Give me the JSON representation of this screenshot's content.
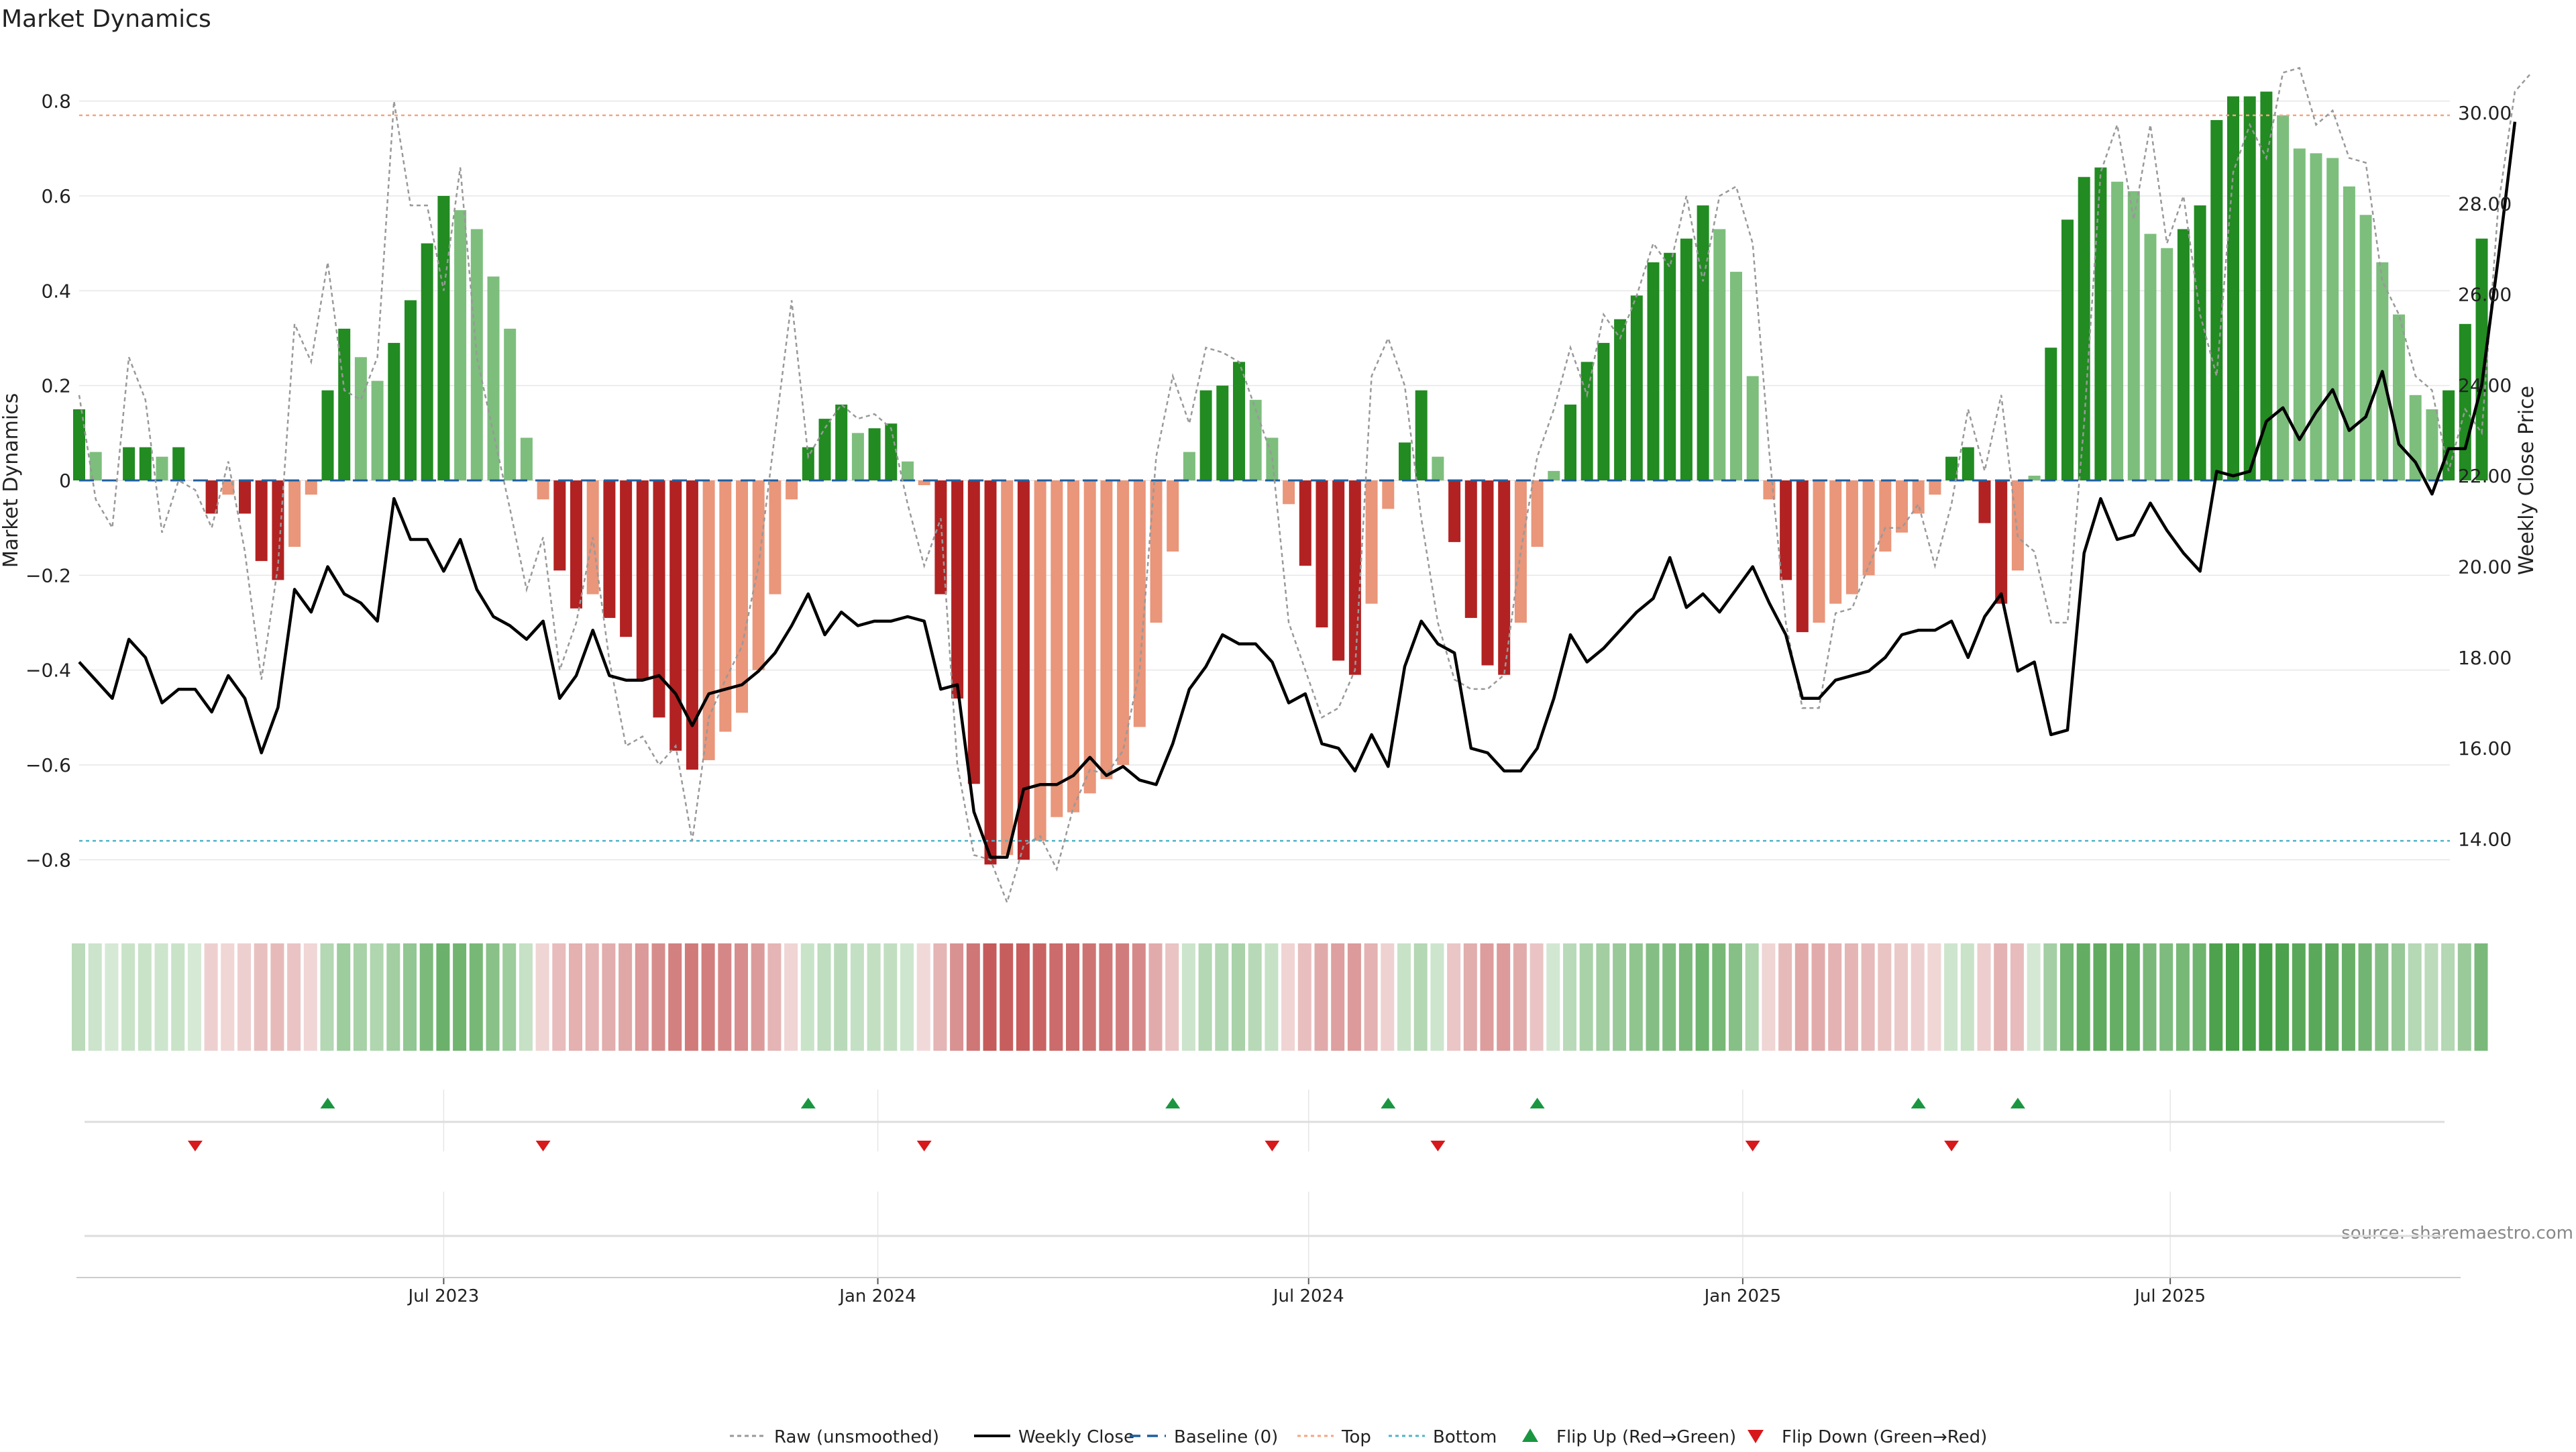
{
  "title": "Market Dynamics",
  "source_note": "source: sharemaestro.com",
  "colors": {
    "strong_pos": "#228b22",
    "weak_pos": "#7dbe7d",
    "strong_neg": "#b22222",
    "weak_neg": "#e9967a",
    "price_line": "#000000",
    "raw_line": "#999999",
    "baseline": "#1f5fa0",
    "top_line": "#f4a582",
    "bottom_line": "#4fb3c9",
    "flip_up": "#1a9641",
    "flip_down": "#d7191c",
    "grid": "#e6e6e6"
  },
  "legend": [
    {
      "key": "raw",
      "label": "Raw (unsmoothed)"
    },
    {
      "key": "close",
      "label": "Weekly Close"
    },
    {
      "key": "baseline",
      "label": "Baseline (0)"
    },
    {
      "key": "top",
      "label": "Top"
    },
    {
      "key": "bottom",
      "label": "Bottom"
    },
    {
      "key": "flipup",
      "label": "Flip Up (Red→Green)"
    },
    {
      "key": "flipdown",
      "label": "Flip Down (Green→Red)"
    }
  ],
  "chart_data": {
    "type": "bar",
    "title": "Market Dynamics",
    "ylabel": "Market Dynamics",
    "y2label": "Weekly Close Price",
    "ylim": [
      -0.9,
      0.9
    ],
    "y2lim": [
      12.5,
      31.3
    ],
    "yticks": [
      "0.8",
      "0.6",
      "0.4",
      "0.2",
      "0",
      "−0.2",
      "−0.4",
      "−0.6",
      "−0.8"
    ],
    "yticks_values": [
      0.8,
      0.6,
      0.4,
      0.2,
      0,
      -0.2,
      -0.4,
      -0.6,
      -0.8
    ],
    "y2ticks": [
      "30.00",
      "28.00",
      "26.00",
      "24.00",
      "22.00",
      "20.00",
      "18.00",
      "16.00",
      "14.00"
    ],
    "y2ticks_values": [
      30,
      28,
      26,
      24,
      22,
      20,
      18,
      16,
      14
    ],
    "xticks": [
      {
        "label": "Jul 2023",
        "week": 22
      },
      {
        "label": "Jan 2024",
        "week": 48.2
      },
      {
        "label": "Jul 2024",
        "week": 74.2
      },
      {
        "label": "Jan 2025",
        "week": 100.4
      },
      {
        "label": "Jul 2025",
        "week": 126.2
      }
    ],
    "top": 0.77,
    "bottom": -0.76,
    "baseline": 0,
    "bars": [
      0.15,
      0.06,
      0,
      0.07,
      0.07,
      0.05,
      0.07,
      0,
      -0.07,
      -0.03,
      -0.07,
      -0.17,
      -0.21,
      -0.14,
      -0.03,
      0.19,
      0.32,
      0.26,
      0.21,
      0.29,
      0.38,
      0.5,
      0.6,
      0.57,
      0.53,
      0.43,
      0.32,
      0.09,
      -0.04,
      -0.19,
      -0.27,
      -0.24,
      -0.29,
      -0.33,
      -0.42,
      -0.5,
      -0.57,
      -0.61,
      -0.59,
      -0.53,
      -0.49,
      -0.4,
      -0.24,
      -0.04,
      0.07,
      0.13,
      0.16,
      0.1,
      0.11,
      0.12,
      0.04,
      -0.01,
      -0.24,
      -0.46,
      -0.64,
      -0.81,
      -0.79,
      -0.8,
      -0.76,
      -0.71,
      -0.7,
      -0.66,
      -0.63,
      -0.6,
      -0.52,
      -0.3,
      -0.15,
      0.06,
      0.19,
      0.2,
      0.25,
      0.17,
      0.09,
      -0.05,
      -0.18,
      -0.31,
      -0.38,
      -0.41,
      -0.26,
      -0.06,
      0.08,
      0.19,
      0.05,
      -0.13,
      -0.29,
      -0.39,
      -0.41,
      -0.3,
      -0.14,
      0.02,
      0.16,
      0.25,
      0.29,
      0.34,
      0.39,
      0.46,
      0.48,
      0.51,
      0.58,
      0.53,
      0.44,
      0.22,
      -0.04,
      -0.21,
      -0.32,
      -0.3,
      -0.26,
      -0.24,
      -0.2,
      -0.15,
      -0.11,
      -0.07,
      -0.03,
      0.05,
      0.07,
      -0.09,
      -0.26,
      -0.19,
      0.01,
      0.28,
      0.55,
      0.64,
      0.66,
      0.63,
      0.61,
      0.52,
      0.49,
      0.53,
      0.58,
      0.76,
      0.81,
      0.81,
      0.82,
      0.77,
      0.7,
      0.69,
      0.68,
      0.62,
      0.56,
      0.46,
      0.35,
      0.18,
      0.15,
      0.19,
      0.33,
      0.51
    ],
    "close": [
      17.9,
      17.5,
      17.1,
      18.4,
      18.0,
      17.0,
      17.3,
      17.3,
      16.8,
      17.6,
      17.1,
      15.9,
      16.9,
      19.5,
      19.0,
      20.0,
      19.4,
      19.2,
      18.8,
      21.5,
      20.6,
      20.6,
      19.9,
      20.6,
      19.5,
      18.9,
      18.7,
      18.4,
      18.8,
      17.1,
      17.6,
      18.6,
      17.6,
      17.5,
      17.5,
      17.6,
      17.2,
      16.5,
      17.2,
      17.3,
      17.4,
      17.7,
      18.1,
      18.7,
      19.4,
      18.5,
      19.0,
      18.7,
      18.8,
      18.8,
      18.9,
      18.8,
      17.3,
      17.4,
      14.6,
      13.6,
      13.6,
      15.1,
      15.2,
      15.2,
      15.4,
      15.8,
      15.4,
      15.6,
      15.3,
      15.2,
      16.1,
      17.3,
      17.8,
      18.5,
      18.3,
      18.3,
      17.9,
      17.0,
      17.2,
      16.1,
      16.0,
      15.5,
      16.3,
      15.6,
      17.8,
      18.8,
      18.3,
      18.1,
      16.0,
      15.9,
      15.5,
      15.5,
      16.0,
      17.1,
      18.5,
      17.9,
      18.2,
      18.6,
      19.0,
      19.3,
      20.2,
      19.1,
      19.4,
      19.0,
      19.5,
      20.0,
      19.2,
      18.5,
      17.1,
      17.1,
      17.5,
      17.6,
      17.7,
      18.0,
      18.5,
      18.6,
      18.6,
      18.8,
      18.0,
      18.9,
      19.4,
      17.7,
      17.9,
      16.3,
      16.4,
      20.3,
      21.5,
      20.6,
      20.7,
      21.4,
      20.8,
      20.3,
      19.9,
      22.1,
      22.0,
      22.1,
      23.2,
      23.5,
      22.8,
      23.4,
      23.9,
      23.0,
      23.3,
      24.3,
      22.7,
      22.3,
      21.6,
      22.6,
      22.6,
      24.0,
      26.8,
      29.8
    ],
    "raw": [
      0.18,
      -0.04,
      -0.1,
      0.26,
      0.17,
      -0.11,
      0,
      -0.02,
      -0.1,
      0.04,
      -0.15,
      -0.42,
      -0.18,
      0.33,
      0.25,
      0.46,
      0.19,
      0.17,
      0.26,
      0.8,
      0.58,
      0.58,
      0.4,
      0.66,
      0.26,
      0.1,
      -0.06,
      -0.23,
      -0.12,
      -0.4,
      -0.3,
      -0.12,
      -0.38,
      -0.56,
      -0.54,
      -0.6,
      -0.56,
      -0.76,
      -0.5,
      -0.42,
      -0.35,
      -0.18,
      0.1,
      0.38,
      0.05,
      0.11,
      0.16,
      0.13,
      0.14,
      0.11,
      -0.05,
      -0.18,
      -0.08,
      -0.6,
      -0.79,
      -0.8,
      -0.89,
      -0.77,
      -0.75,
      -0.82,
      -0.69,
      -0.61,
      -0.62,
      -0.57,
      -0.4,
      0.05,
      0.22,
      0.12,
      0.28,
      0.27,
      0.25,
      0.15,
      0.05,
      -0.3,
      -0.4,
      -0.5,
      -0.48,
      -0.4,
      0.22,
      0.3,
      0.2,
      -0.08,
      -0.3,
      -0.42,
      -0.44,
      -0.44,
      -0.41,
      -0.15,
      0.05,
      0.15,
      0.28,
      0.18,
      0.35,
      0.3,
      0.39,
      0.5,
      0.45,
      0.6,
      0.42,
      0.6,
      0.62,
      0.5,
      0.06,
      -0.3,
      -0.48,
      -0.48,
      -0.28,
      -0.27,
      -0.18,
      -0.1,
      -0.1,
      -0.05,
      -0.18,
      -0.05,
      0.15,
      0.02,
      0.18,
      -0.12,
      -0.15,
      -0.3,
      -0.3,
      0.12,
      0.65,
      0.75,
      0.55,
      0.75,
      0.5,
      0.6,
      0.35,
      0.22,
      0.65,
      0.75,
      0.68,
      0.86,
      0.87,
      0.75,
      0.78,
      0.68,
      0.67,
      0.42,
      0.35,
      0.22,
      0.19,
      0.02,
      0.15,
      0.1,
      0.58,
      0.82,
      0.86
    ]
  },
  "heat_strip": {
    "label": "regime heat strip"
  },
  "flips": {
    "up_weeks": [
      15,
      44,
      66,
      79,
      88,
      111,
      117
    ],
    "down_weeks": [
      7,
      28,
      51,
      72,
      82,
      101,
      113
    ]
  }
}
